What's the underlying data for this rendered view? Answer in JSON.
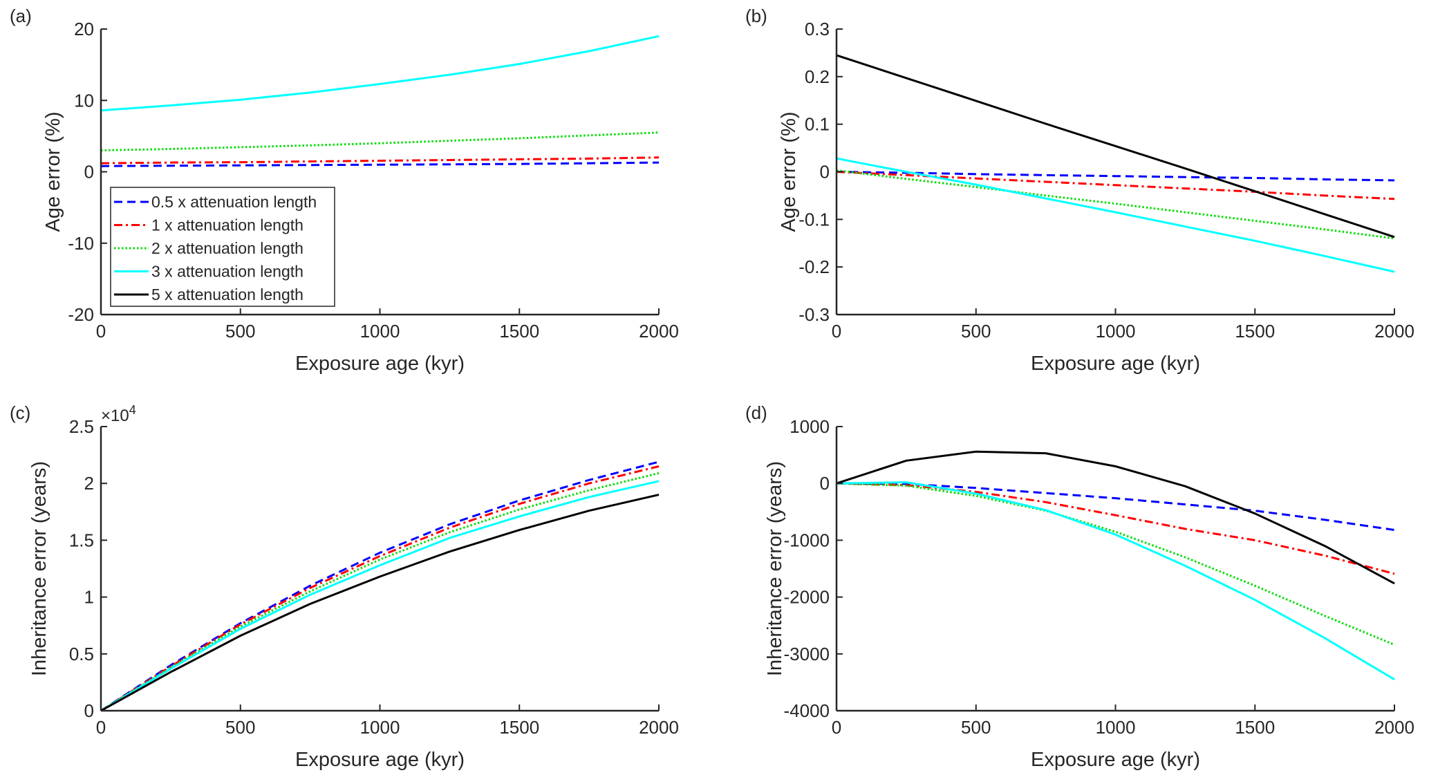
{
  "chart_data": [
    {
      "panel": "(a)",
      "type": "line",
      "xlabel": "Exposure age (kyr)",
      "ylabel": "Age error (%)",
      "xlim": [
        0,
        2000
      ],
      "ylim": [
        -20,
        20
      ],
      "xticks": [
        "0",
        "500",
        "1000",
        "1500",
        "2000"
      ],
      "yticks": [
        "-20",
        "-10",
        "0",
        "10",
        "20"
      ],
      "x": [
        0,
        250,
        500,
        750,
        1000,
        1250,
        1500,
        1750,
        2000
      ],
      "legend": {
        "placement": "lower-left",
        "entries": [
          "0.5 x attenuation length",
          "1 x attenuation length",
          "2 x attenuation length",
          "3 x attenuation length",
          "5 x attenuation length"
        ]
      },
      "series": [
        {
          "name": "0.5 x attenuation length",
          "values": [
            0.8,
            0.85,
            0.9,
            0.95,
            1.0,
            1.05,
            1.1,
            1.2,
            1.3
          ]
        },
        {
          "name": "1 x attenuation length",
          "values": [
            1.2,
            1.3,
            1.35,
            1.45,
            1.55,
            1.65,
            1.75,
            1.85,
            2.0
          ]
        },
        {
          "name": "2 x attenuation length",
          "values": [
            3.0,
            3.2,
            3.45,
            3.7,
            4.0,
            4.35,
            4.7,
            5.1,
            5.5
          ]
        },
        {
          "name": "3 x attenuation length",
          "values": [
            8.6,
            9.3,
            10.1,
            11.1,
            12.3,
            13.6,
            15.1,
            16.9,
            19.0
          ]
        },
        {
          "name": "5 x attenuation length",
          "values": null
        }
      ]
    },
    {
      "panel": "(b)",
      "type": "line",
      "xlabel": "Exposure age (kyr)",
      "ylabel": "Age error (%)",
      "xlim": [
        0,
        2000
      ],
      "ylim": [
        -0.3,
        0.3
      ],
      "xticks": [
        "0",
        "500",
        "1000",
        "1500",
        "2000"
      ],
      "yticks": [
        "-0.3",
        "-0.2",
        "-0.1",
        "0",
        "0.1",
        "0.2",
        "0.3"
      ],
      "x": [
        0,
        250,
        500,
        750,
        1000,
        1250,
        1500,
        1750,
        2000
      ],
      "series": [
        {
          "name": "0.5 x attenuation length",
          "values": [
            0,
            -0.002,
            -0.005,
            -0.007,
            -0.009,
            -0.011,
            -0.013,
            -0.016,
            -0.018
          ]
        },
        {
          "name": "1 x attenuation length",
          "values": [
            0,
            -0.007,
            -0.014,
            -0.021,
            -0.028,
            -0.035,
            -0.042,
            -0.05,
            -0.057
          ]
        },
        {
          "name": "2 x attenuation length",
          "values": [
            0.003,
            -0.015,
            -0.032,
            -0.05,
            -0.067,
            -0.085,
            -0.103,
            -0.121,
            -0.14
          ]
        },
        {
          "name": "3 x attenuation length",
          "values": [
            0.028,
            0.0,
            -0.027,
            -0.056,
            -0.085,
            -0.115,
            -0.145,
            -0.177,
            -0.21
          ]
        },
        {
          "name": "5 x attenuation length",
          "values": [
            0.245,
            0.197,
            0.149,
            0.101,
            0.054,
            0.007,
            -0.041,
            -0.089,
            -0.137
          ]
        }
      ]
    },
    {
      "panel": "(c)",
      "type": "line",
      "xlabel": "Exposure age (kyr)",
      "ylabel": "Inheritance error (years)",
      "multiplier": "×10",
      "multiplier_exp": "4",
      "xlim": [
        0,
        2000
      ],
      "ylim": [
        0,
        2.5
      ],
      "xticks": [
        "0",
        "500",
        "1000",
        "1500",
        "2000"
      ],
      "yticks": [
        "0",
        "0.5",
        "1",
        "1.5",
        "2",
        "2.5"
      ],
      "x": [
        0,
        250,
        500,
        750,
        1000,
        1250,
        1500,
        1750,
        2000
      ],
      "series": [
        {
          "name": "0.5 x attenuation length",
          "values": [
            0,
            0.4,
            0.77,
            1.1,
            1.39,
            1.64,
            1.85,
            2.03,
            2.19
          ]
        },
        {
          "name": "1 x attenuation length",
          "values": [
            0,
            0.39,
            0.76,
            1.08,
            1.36,
            1.61,
            1.82,
            2.0,
            2.15
          ]
        },
        {
          "name": "2 x attenuation length",
          "values": [
            0,
            0.38,
            0.74,
            1.05,
            1.33,
            1.57,
            1.77,
            1.94,
            2.09
          ]
        },
        {
          "name": "3 x attenuation length",
          "values": [
            0,
            0.37,
            0.72,
            1.02,
            1.28,
            1.52,
            1.71,
            1.88,
            2.02
          ]
        },
        {
          "name": "5 x attenuation length",
          "values": [
            0,
            0.34,
            0.66,
            0.94,
            1.18,
            1.4,
            1.59,
            1.76,
            1.9
          ]
        }
      ]
    },
    {
      "panel": "(d)",
      "type": "line",
      "xlabel": "Exposure age (kyr)",
      "ylabel": "Inheritance error (years)",
      "xlim": [
        0,
        2000
      ],
      "ylim": [
        -4000,
        1000
      ],
      "xticks": [
        "0",
        "500",
        "1000",
        "1500",
        "2000"
      ],
      "yticks": [
        "-4000",
        "-3000",
        "-2000",
        "-1000",
        "0",
        "1000"
      ],
      "x": [
        0,
        250,
        500,
        750,
        1000,
        1250,
        1500,
        1750,
        2000
      ],
      "series": [
        {
          "name": "0.5 x attenuation length",
          "values": [
            0,
            -10,
            -80,
            -170,
            -260,
            -370,
            -480,
            -640,
            -820
          ]
        },
        {
          "name": "1 x attenuation length",
          "values": [
            0,
            -30,
            -150,
            -330,
            -560,
            -800,
            -1000,
            -1270,
            -1590
          ]
        },
        {
          "name": "2 x attenuation length",
          "values": [
            0,
            -40,
            -220,
            -480,
            -850,
            -1300,
            -1800,
            -2330,
            -2840
          ]
        },
        {
          "name": "3 x attenuation length",
          "values": [
            0,
            20,
            -180,
            -470,
            -900,
            -1450,
            -2050,
            -2720,
            -3450
          ]
        },
        {
          "name": "5 x attenuation length",
          "values": [
            0,
            400,
            560,
            530,
            300,
            -50,
            -530,
            -1100,
            -1760
          ]
        }
      ]
    }
  ],
  "colors": [
    "#0000ff",
    "#ff0000",
    "#00dd00",
    "#00ffff",
    "#000000"
  ]
}
